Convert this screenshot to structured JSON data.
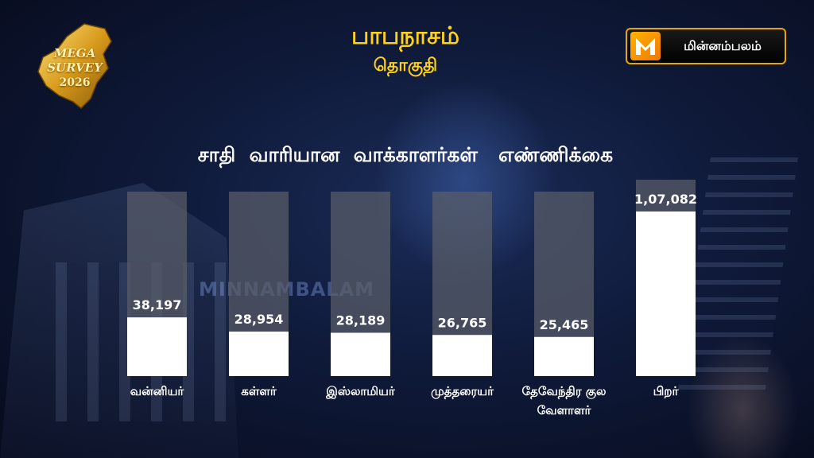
{
  "badge": {
    "line1": "MEGA SURVEY",
    "line2": "2026"
  },
  "header": {
    "title": "பாபநாசம்",
    "subtitle": "தொகுதி"
  },
  "logo": {
    "text": "மின்னம்பலம்"
  },
  "watermark": "MINNAMBALAM",
  "colors": {
    "accent": "#ffd11a",
    "bar": "#ffffff",
    "track": "#5a5e6a",
    "logo_border": "#e6a700"
  },
  "chart_data": {
    "type": "bar",
    "title": "சாதி  வாரியான  வாக்காளர்கள்   எண்ணிக்கை",
    "categories": [
      [
        "வன்னியர்"
      ],
      [
        "கள்ளர்"
      ],
      [
        "இஸ்லாமியர்"
      ],
      [
        "முத்தரையர்"
      ],
      [
        "தேவேந்திர குல",
        "வேளாளர்"
      ],
      [
        "பிறர்"
      ]
    ],
    "values": [
      38197,
      28954,
      28189,
      26765,
      25465,
      107082
    ],
    "value_labels": [
      "38,197",
      "28,954",
      "28,189",
      "26,765",
      "25,465",
      "1,07,082"
    ],
    "ylim": [
      0,
      120000
    ]
  }
}
